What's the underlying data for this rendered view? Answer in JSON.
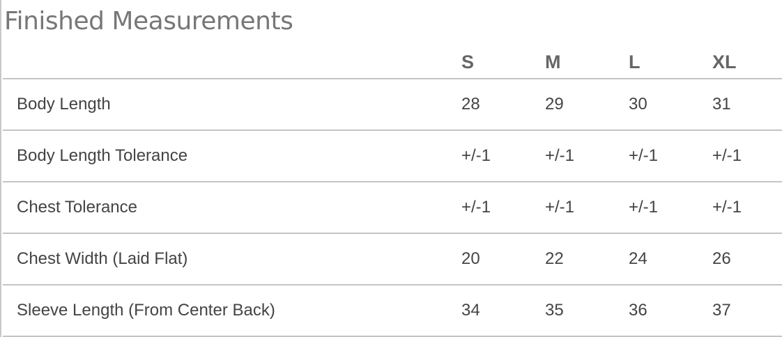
{
  "title": "Finished Measurements",
  "sizes": [
    "S",
    "M",
    "L",
    "XL"
  ],
  "rows": [
    {
      "label": "Body Length",
      "values": [
        "28",
        "29",
        "30",
        "31"
      ]
    },
    {
      "label": "Body Length Tolerance",
      "values": [
        "+/-1",
        "+/-1",
        "+/-1",
        "+/-1"
      ]
    },
    {
      "label": "Chest Tolerance",
      "values": [
        "+/-1",
        "+/-1",
        "+/-1",
        "+/-1"
      ]
    },
    {
      "label": "Chest Width (Laid Flat)",
      "values": [
        "20",
        "22",
        "24",
        "26"
      ]
    },
    {
      "label": "Sleeve Length (From Center Back)",
      "values": [
        "34",
        "35",
        "36",
        "37"
      ]
    }
  ]
}
